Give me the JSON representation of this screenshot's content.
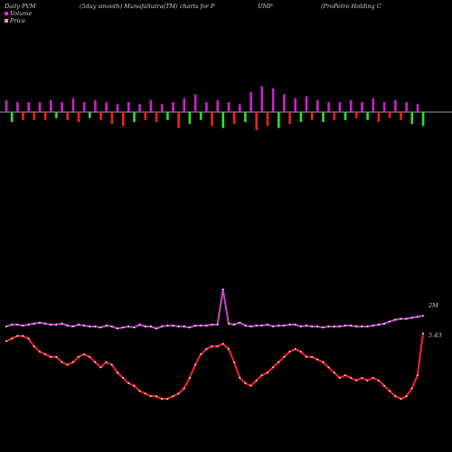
{
  "header": {
    "part1": "Daily PVM",
    "part2": "(5day smooth) MunafaSutra(TM) charts for P",
    "part3": "UMP",
    "part4": "(ProPetro  Holding C"
  },
  "legend": {
    "volume_label": "Volume",
    "price_label": "Price",
    "volume_color": "#cc33cc",
    "price_color": "#ff9966"
  },
  "chart_data": {
    "type": "bar+line",
    "n": 76,
    "volume_bars": {
      "values": [
        6,
        -5,
        5,
        -4,
        5,
        -4,
        5,
        -4,
        6,
        -3,
        5,
        -4,
        7,
        -5,
        5,
        -3,
        6,
        -4,
        5,
        -6,
        4,
        -7,
        5,
        -5,
        4,
        -4,
        6,
        -5,
        4,
        -4,
        5,
        -8,
        7,
        -6,
        9,
        -4,
        5,
        -7,
        6,
        -8,
        5,
        -6,
        4,
        -5,
        10,
        -9,
        13,
        -7,
        12,
        -8,
        9,
        -6,
        7,
        -5,
        8,
        -4,
        6,
        -5,
        5,
        -4,
        5,
        -4,
        6,
        -3,
        5,
        -4,
        7,
        -5,
        5,
        -3,
        6,
        -4,
        5,
        -6,
        4,
        -7
      ],
      "colors": [
        "m",
        "g",
        "m",
        "r",
        "m",
        "r",
        "m",
        "r",
        "m",
        "g",
        "m",
        "r",
        "m",
        "r",
        "m",
        "g",
        "m",
        "r",
        "m",
        "r",
        "m",
        "r",
        "m",
        "g",
        "m",
        "r",
        "m",
        "r",
        "m",
        "g",
        "m",
        "r",
        "m",
        "g",
        "m",
        "g",
        "m",
        "r",
        "m",
        "g",
        "m",
        "r",
        "m",
        "g",
        "m",
        "r",
        "m",
        "r",
        "m",
        "g",
        "m",
        "r",
        "m",
        "g",
        "m",
        "r",
        "m",
        "g",
        "m",
        "r",
        "m",
        "g",
        "m",
        "r",
        "m",
        "g",
        "m",
        "r",
        "m",
        "r",
        "m",
        "r",
        "m",
        "g",
        "m",
        "g"
      ],
      "zero_label": ""
    },
    "volume_line": {
      "label": "2M",
      "values": [
        22,
        24,
        24,
        23,
        24,
        25,
        26,
        25,
        24,
        24,
        25,
        23,
        22,
        24,
        23,
        22,
        22,
        21,
        23,
        22,
        20,
        21,
        22,
        21,
        24,
        22,
        22,
        20,
        22,
        23,
        23,
        22,
        22,
        21,
        23,
        23,
        23,
        24,
        24,
        60,
        25,
        24,
        26,
        23,
        22,
        23,
        23,
        24,
        22,
        23,
        23,
        24,
        24,
        22,
        23,
        22,
        22,
        21,
        22,
        22,
        22,
        23,
        23,
        22,
        22,
        22,
        23,
        24,
        25,
        27,
        29,
        30,
        30,
        31,
        32,
        33
      ]
    },
    "price_line": {
      "label": "5.43",
      "values": [
        54,
        55,
        56,
        56,
        55,
        52,
        50,
        49,
        48,
        48,
        46,
        45,
        46,
        48,
        49,
        48,
        46,
        44,
        46,
        45,
        42,
        40,
        38,
        37,
        35,
        34,
        33,
        33,
        32,
        32,
        33,
        34,
        36,
        40,
        45,
        49,
        51,
        52,
        52,
        53,
        51,
        46,
        40,
        38,
        37,
        39,
        41,
        42,
        44,
        46,
        48,
        50,
        51,
        50,
        48,
        48,
        47,
        46,
        44,
        42,
        40,
        41,
        40,
        39,
        40,
        39,
        40,
        39,
        37,
        35,
        33,
        32,
        33,
        36,
        41,
        57
      ]
    }
  }
}
